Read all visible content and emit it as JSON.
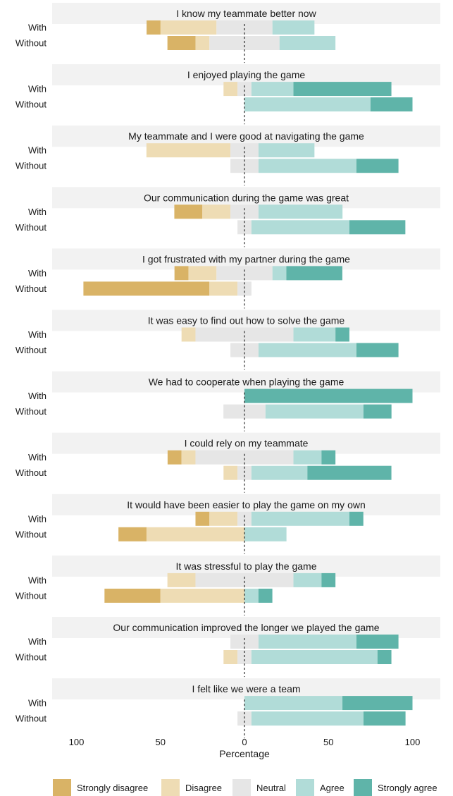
{
  "chart_data": {
    "type": "bar",
    "subtype": "diverging-stacked-likert",
    "xlabel": "Percentage",
    "x_ticks": [
      {
        "value": -100,
        "label": "100"
      },
      {
        "value": -50,
        "label": "50"
      },
      {
        "value": 0,
        "label": "0"
      },
      {
        "value": 50,
        "label": "50"
      },
      {
        "value": 100,
        "label": "100"
      }
    ],
    "xlim": [
      -100,
      100
    ],
    "legend_position": "bottom",
    "categories": [
      "Strongly disagree",
      "Disagree",
      "Neutral",
      "Agree",
      "Strongly agree"
    ],
    "colors": {
      "Strongly disagree": "#d9b366",
      "Disagree": "#eedcb4",
      "Neutral": "#e6e6e6",
      "Agree": "#b1dcd8",
      "Strongly agree": "#5fb4a9"
    },
    "row_labels": [
      "With",
      "Without"
    ],
    "panels": [
      {
        "title": "I know my teammate better now",
        "rows": [
          {
            "label": "With",
            "values": [
              8.3,
              33.3,
              33.3,
              25.0,
              0
            ]
          },
          {
            "label": "Without",
            "values": [
              16.7,
              8.3,
              41.7,
              33.3,
              0
            ]
          }
        ]
      },
      {
        "title": "I enjoyed playing the game",
        "rows": [
          {
            "label": "With",
            "values": [
              0,
              8.3,
              8.3,
              25.0,
              58.3
            ]
          },
          {
            "label": "Without",
            "values": [
              0,
              0,
              0,
              75.0,
              25.0
            ]
          }
        ]
      },
      {
        "title": "My teammate and I were good at navigating the game",
        "rows": [
          {
            "label": "With",
            "values": [
              0,
              50.0,
              16.7,
              33.3,
              0
            ]
          },
          {
            "label": "Without",
            "values": [
              0,
              0,
              16.7,
              58.3,
              25.0
            ]
          }
        ]
      },
      {
        "title": "Our communication during the game was great",
        "rows": [
          {
            "label": "With",
            "values": [
              16.7,
              16.7,
              16.7,
              50.0,
              0
            ]
          },
          {
            "label": "Without",
            "values": [
              0,
              0,
              8.3,
              58.3,
              33.3
            ]
          }
        ]
      },
      {
        "title": "I got frustrated with my partner during the game",
        "rows": [
          {
            "label": "With",
            "values": [
              8.3,
              16.7,
              33.3,
              8.3,
              33.3
            ]
          },
          {
            "label": "Without",
            "values": [
              75.0,
              16.7,
              8.3,
              0,
              0
            ]
          }
        ]
      },
      {
        "title": "It was easy to find out how to solve the game",
        "rows": [
          {
            "label": "With",
            "values": [
              0,
              8.3,
              58.3,
              25.0,
              8.3
            ]
          },
          {
            "label": "Without",
            "values": [
              0,
              0,
              16.7,
              58.3,
              25.0
            ]
          }
        ]
      },
      {
        "title": "We had to cooperate when playing the game",
        "rows": [
          {
            "label": "With",
            "values": [
              0,
              0,
              0,
              0,
              100.0
            ]
          },
          {
            "label": "Without",
            "values": [
              0,
              0,
              25.0,
              58.3,
              16.7
            ]
          }
        ]
      },
      {
        "title": "I could rely on my teammate",
        "rows": [
          {
            "label": "With",
            "values": [
              8.3,
              8.3,
              58.3,
              16.7,
              8.3
            ]
          },
          {
            "label": "Without",
            "values": [
              0,
              8.3,
              8.3,
              33.3,
              50.0
            ]
          }
        ]
      },
      {
        "title": "It would have been easier to play the game on my own",
        "rows": [
          {
            "label": "With",
            "values": [
              8.3,
              16.7,
              8.3,
              58.3,
              8.3
            ]
          },
          {
            "label": "Without",
            "values": [
              16.7,
              58.3,
              0,
              25.0,
              0
            ]
          }
        ]
      },
      {
        "title": "It was stressful to play the game",
        "rows": [
          {
            "label": "With",
            "values": [
              0,
              16.7,
              58.3,
              16.7,
              8.3
            ]
          },
          {
            "label": "Without",
            "values": [
              33.3,
              50.0,
              0,
              8.3,
              8.3
            ]
          }
        ]
      },
      {
        "title": "Our communication improved the longer we played the game",
        "rows": [
          {
            "label": "With",
            "values": [
              0,
              0,
              16.7,
              58.3,
              25.0
            ]
          },
          {
            "label": "Without",
            "values": [
              0,
              8.3,
              8.3,
              75.0,
              8.3
            ]
          }
        ]
      },
      {
        "title": "I felt like we were a team",
        "rows": [
          {
            "label": "With",
            "values": [
              0,
              0,
              0,
              58.3,
              41.7
            ]
          },
          {
            "label": "Without",
            "values": [
              0,
              0,
              8.3,
              66.7,
              25.0
            ]
          }
        ]
      }
    ]
  }
}
